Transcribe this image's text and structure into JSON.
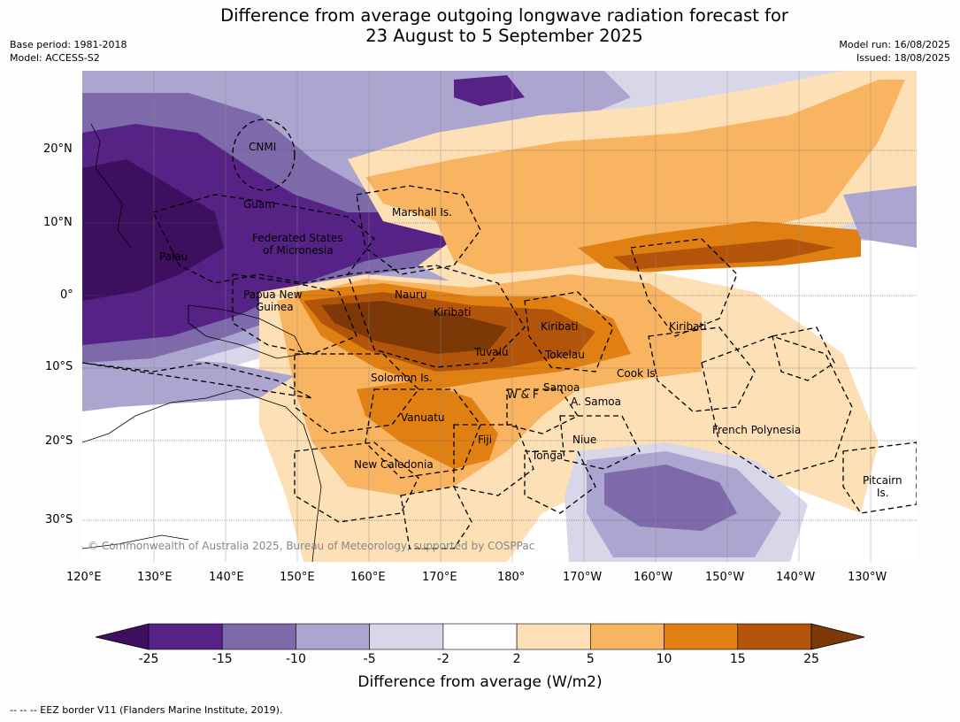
{
  "title_line1": "Difference from average outgoing longwave radiation forecast for",
  "title_line2": "23 August to 5 September 2025",
  "base_period": "Base period: 1981-2018",
  "model": "Model: ACCESS-S2",
  "model_run": "Model run: 16/08/2025",
  "issued": "Issued: 18/08/2025",
  "lat_ticks": [
    "20°N",
    "10°N",
    "0°",
    "10°S",
    "20°S",
    "30°S"
  ],
  "lon_ticks": [
    "120°E",
    "130°E",
    "140°E",
    "150°E",
    "160°E",
    "170°E",
    "180°",
    "170°W",
    "160°W",
    "150°W",
    "140°W",
    "130°W"
  ],
  "region_labels": {
    "cnmi": "CNMI",
    "guam": "Guam",
    "marshall": "Marshall Is.",
    "fsm1": "Federated States",
    "fsm2": "of Micronesia",
    "palau": "Palau",
    "png1": "Papua New",
    "png2": "Guinea",
    "nauru": "Nauru",
    "kiribati_w": "Kiribati",
    "kiribati_c": "Kiribati",
    "kiribati_e": "Kiribati",
    "tuvalu": "Tuvalu",
    "tokelau": "Tokelau",
    "cook": "Cook Is.",
    "solomon": "Solomon Is.",
    "wf": "W & F",
    "samoa": "Samoa",
    "asamoa": "A. Samoa",
    "vanuatu": "Vanuatu",
    "fiji": "Fiji",
    "niue": "Niue",
    "tonga": "Tonga",
    "french_polynesia": "French Polynesia",
    "new_caledonia": "New Caledonia",
    "pitcairn1": "Pitcairn",
    "pitcairn2": "Is."
  },
  "copyright": "© Commonwealth of Australia 2025, Bureau of Meteorology, supported by COSPPac",
  "colorbar": {
    "title": "Difference from average (W/m2)",
    "bounds": [
      "-25",
      "-15",
      "-10",
      "-5",
      "-2",
      "2",
      "5",
      "10",
      "15",
      "25"
    ],
    "colors": [
      "#3d0f5e",
      "#562285",
      "#7e6aab",
      "#aca5cf",
      "#d8d7e9",
      "#ffffff",
      "#fde0b6",
      "#f9b462",
      "#e08013",
      "#b25409",
      "#7c3807"
    ]
  },
  "footnote": "--  --  -- EEZ border V11 (Flanders Marine Institute, 2019)."
}
